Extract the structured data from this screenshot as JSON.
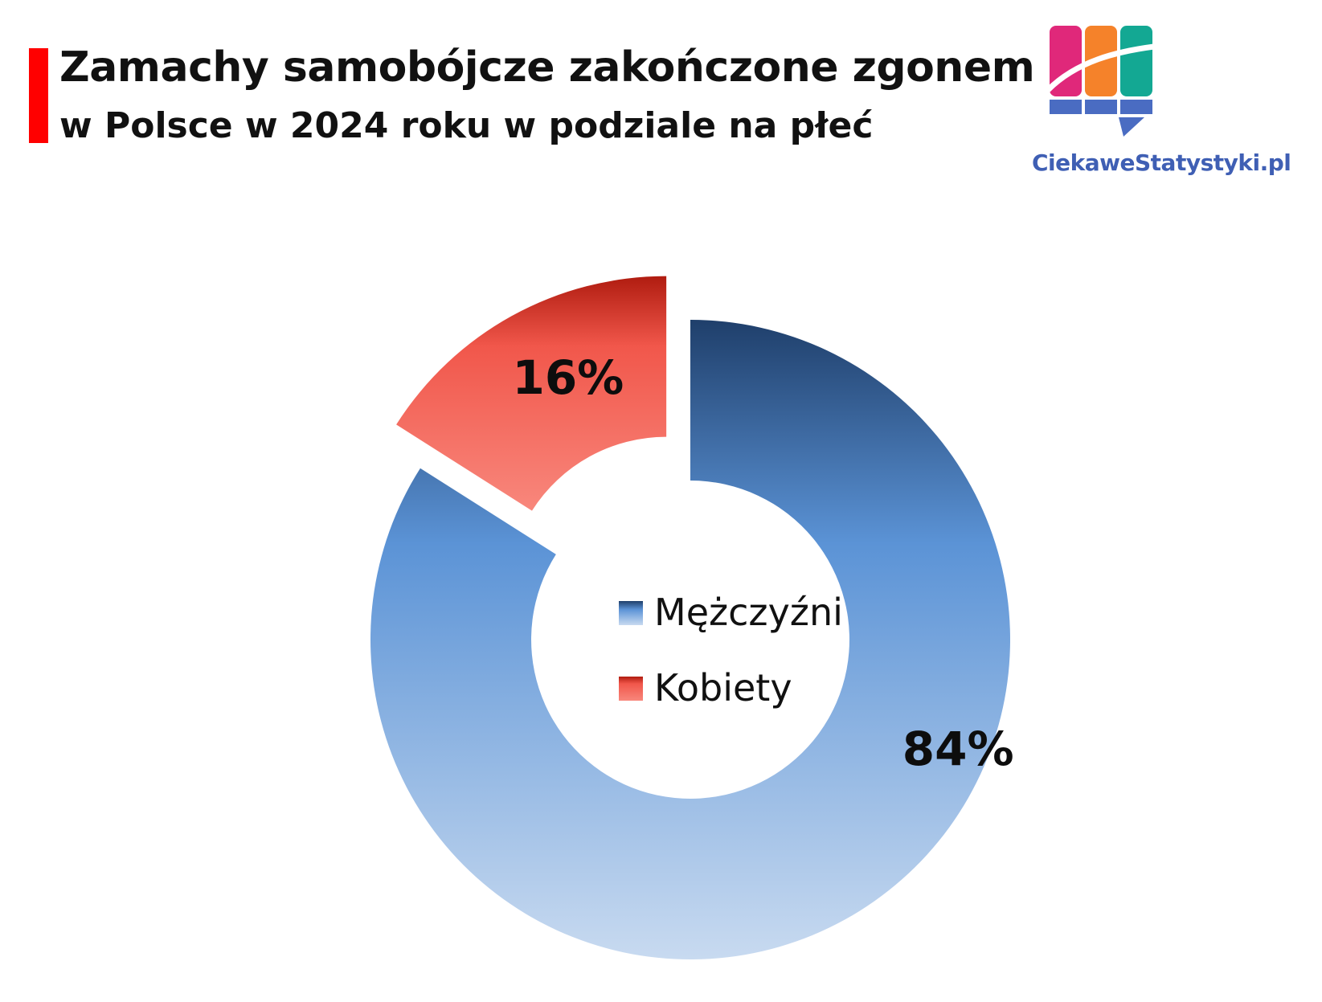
{
  "header": {
    "title": "Zamachy samobójcze zakończone zgonem",
    "subtitle": "w Polsce w 2024 roku w podziale na płeć",
    "accent_color": "#ff0000"
  },
  "logo": {
    "text": "CiekaweStatystyki.pl",
    "icon": "bar-chart-logo-icon",
    "colors": [
      "#e0287a",
      "#f5822a",
      "#13a893",
      "#4a6cc2"
    ]
  },
  "chart_data": {
    "type": "pie",
    "subtype": "donut",
    "title": "",
    "categories": [
      "Mężczyźni",
      "Kobiety"
    ],
    "values": [
      84,
      16
    ],
    "unit": "%",
    "data_labels": [
      "84%",
      "16%"
    ],
    "exploded": [
      "Kobiety"
    ],
    "colors": {
      "Mężczyźni": {
        "dark": "#1f3f6b",
        "mid": "#5b93d6",
        "light": "#c8daf0"
      },
      "Kobiety": {
        "dark": "#b01c10",
        "mid": "#f1574b",
        "light": "#f8877c"
      }
    },
    "legend": {
      "position": "center",
      "entries": [
        "Mężczyźni",
        "Kobiety"
      ]
    }
  }
}
